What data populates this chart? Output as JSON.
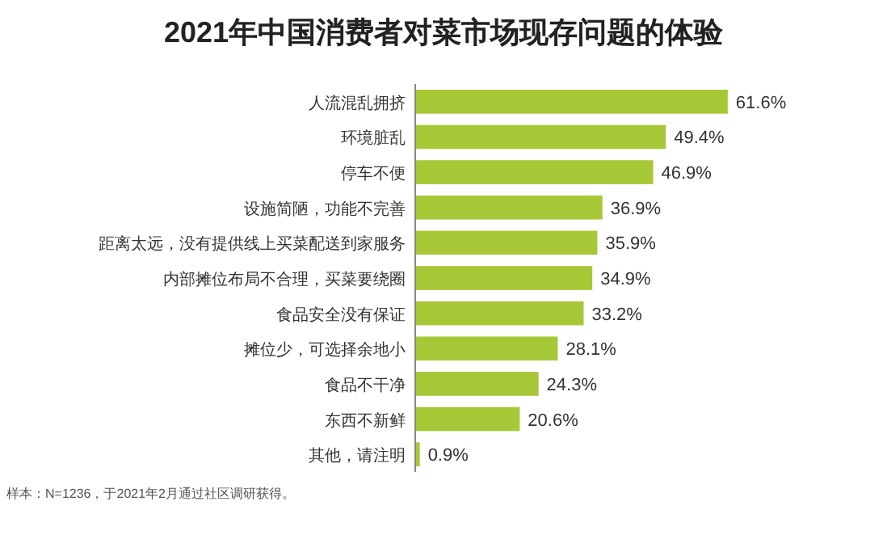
{
  "chart_data": {
    "type": "bar",
    "orientation": "horizontal",
    "title": "2021年中国消费者对菜市场现存问题的体验",
    "categories": [
      "人流混乱拥挤",
      "环境脏乱",
      "停车不便",
      "设施简陋，功能不完善",
      "距离太远，没有提供线上买菜配送到家服务",
      "内部摊位布局不合理，买菜要绕圈",
      "食品安全没有保证",
      "摊位少，可选择余地小",
      "食品不干净",
      "东西不新鲜",
      "其他，请注明"
    ],
    "values": [
      61.6,
      49.4,
      46.9,
      36.9,
      35.9,
      34.9,
      33.2,
      28.1,
      24.3,
      20.6,
      0.9
    ],
    "value_labels": [
      "61.6%",
      "49.4%",
      "46.9%",
      "36.9%",
      "35.9%",
      "34.9%",
      "33.2%",
      "28.1%",
      "24.3%",
      "20.6%",
      "0.9%"
    ],
    "color": "#a6c837",
    "tick_labels": "y",
    "annotations": [
      "样本：N=1236，于2021年2月通过社区调研获得。"
    ]
  }
}
